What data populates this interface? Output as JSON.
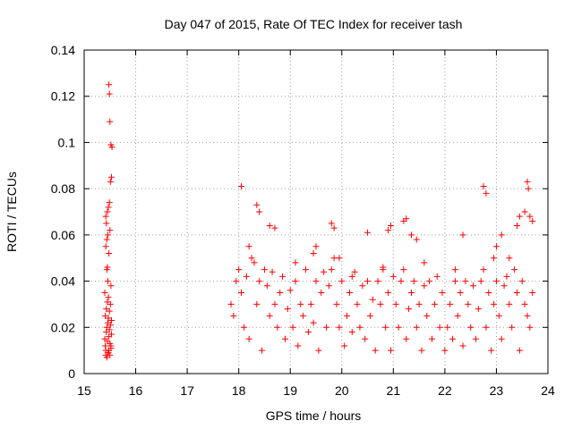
{
  "chart_data": {
    "type": "scatter",
    "title": "Day 047 of 2015, Rate Of TEC Index for receiver tash",
    "xlabel": "GPS time / hours",
    "ylabel": "ROTI / TECUs",
    "xlim": [
      15,
      24
    ],
    "ylim": [
      0,
      0.14
    ],
    "xticks": [
      15,
      16,
      17,
      18,
      19,
      20,
      21,
      22,
      23,
      24
    ],
    "yticks": [
      0,
      0.02,
      0.04,
      0.06,
      0.08,
      0.1,
      0.12,
      0.14
    ],
    "xtick_labels": [
      "15",
      "16",
      "17",
      "18",
      "19",
      "20",
      "21",
      "22",
      "23",
      "24"
    ],
    "ytick_labels": [
      "0",
      "0.02",
      "0.04",
      "0.06",
      "0.08",
      "0.1",
      "0.12",
      "0.14"
    ],
    "grid": true,
    "marker": "plus",
    "color": "#ff0000",
    "series": [
      {
        "name": "ROTI",
        "x": [
          15.4,
          15.41,
          15.42,
          15.43,
          15.44,
          15.45,
          15.46,
          15.47,
          15.48,
          15.49,
          15.5,
          15.51,
          15.52,
          15.53,
          15.41,
          15.43,
          15.45,
          15.47,
          15.49,
          15.51,
          15.53,
          15.42,
          15.44,
          15.46,
          15.48,
          15.5,
          15.52,
          15.4,
          15.44,
          15.48,
          15.52,
          15.42,
          15.46,
          15.5,
          15.45,
          15.47,
          15.49,
          15.51,
          15.53,
          15.52,
          15.54,
          15.5,
          15.49,
          15.48,
          15.47,
          15.46,
          15.45,
          15.44,
          15.43,
          15.42,
          17.85,
          17.9,
          17.95,
          18.0,
          18.05,
          18.1,
          18.15,
          18.2,
          18.25,
          18.3,
          18.35,
          18.4,
          18.45,
          18.5,
          18.55,
          18.6,
          18.65,
          18.7,
          18.75,
          18.8,
          18.85,
          18.9,
          18.95,
          19.0,
          19.05,
          19.1,
          19.15,
          19.2,
          19.25,
          19.3,
          19.35,
          19.4,
          19.45,
          19.5,
          19.55,
          19.6,
          19.65,
          19.7,
          19.75,
          19.8,
          19.85,
          19.9,
          19.95,
          20.0,
          20.05,
          20.1,
          20.15,
          20.2,
          20.25,
          20.3,
          20.35,
          20.4,
          20.45,
          20.5,
          20.55,
          20.6,
          20.65,
          20.7,
          20.75,
          20.8,
          20.85,
          20.9,
          20.95,
          21.0,
          21.05,
          21.1,
          21.15,
          21.2,
          21.25,
          21.3,
          21.35,
          21.4,
          21.45,
          21.5,
          21.55,
          21.6,
          21.65,
          21.7,
          21.75,
          21.8,
          21.85,
          21.9,
          21.95,
          22.0,
          22.05,
          22.1,
          22.15,
          22.2,
          22.25,
          22.3,
          22.35,
          22.4,
          22.45,
          22.5,
          22.55,
          22.6,
          22.65,
          22.7,
          22.75,
          22.8,
          22.85,
          22.9,
          22.95,
          23.0,
          23.05,
          23.1,
          23.15,
          23.2,
          23.25,
          23.3,
          23.35,
          23.4,
          23.45,
          23.5,
          23.55,
          23.6,
          23.65,
          23.7,
          18.05,
          18.35,
          18.4,
          18.6,
          18.7,
          19.8,
          19.85,
          20.5,
          20.9,
          20.95,
          21.2,
          21.25,
          21.35,
          21.45,
          22.35,
          22.75,
          22.8,
          23.0,
          23.1,
          23.4,
          23.45,
          23.55,
          23.6,
          23.62,
          23.65,
          23.7,
          18.2,
          19.45,
          19.5,
          19.95,
          21.6,
          22.2,
          22.95,
          23.25,
          19.1,
          20.2,
          20.8
        ],
        "y": [
          0.015,
          0.012,
          0.01,
          0.018,
          0.02,
          0.014,
          0.022,
          0.009,
          0.016,
          0.019,
          0.013,
          0.021,
          0.011,
          0.017,
          0.025,
          0.028,
          0.031,
          0.024,
          0.027,
          0.03,
          0.023,
          0.008,
          0.007,
          0.009,
          0.01,
          0.008,
          0.012,
          0.035,
          0.045,
          0.052,
          0.038,
          0.055,
          0.06,
          0.062,
          0.07,
          0.072,
          0.074,
          0.083,
          0.085,
          0.099,
          0.098,
          0.109,
          0.121,
          0.125,
          0.033,
          0.04,
          0.046,
          0.058,
          0.065,
          0.068,
          0.03,
          0.025,
          0.04,
          0.045,
          0.035,
          0.02,
          0.042,
          0.015,
          0.05,
          0.048,
          0.03,
          0.04,
          0.01,
          0.045,
          0.038,
          0.025,
          0.044,
          0.03,
          0.02,
          0.035,
          0.042,
          0.015,
          0.028,
          0.036,
          0.02,
          0.04,
          0.012,
          0.03,
          0.025,
          0.045,
          0.018,
          0.03,
          0.022,
          0.04,
          0.01,
          0.035,
          0.044,
          0.02,
          0.038,
          0.045,
          0.05,
          0.03,
          0.02,
          0.04,
          0.012,
          0.025,
          0.035,
          0.018,
          0.044,
          0.03,
          0.02,
          0.038,
          0.015,
          0.04,
          0.025,
          0.032,
          0.01,
          0.04,
          0.03,
          0.045,
          0.02,
          0.035,
          0.01,
          0.042,
          0.03,
          0.02,
          0.04,
          0.045,
          0.015,
          0.028,
          0.035,
          0.04,
          0.02,
          0.03,
          0.01,
          0.038,
          0.025,
          0.04,
          0.015,
          0.03,
          0.042,
          0.02,
          0.035,
          0.01,
          0.02,
          0.03,
          0.015,
          0.04,
          0.025,
          0.035,
          0.012,
          0.04,
          0.03,
          0.02,
          0.038,
          0.015,
          0.028,
          0.04,
          0.045,
          0.02,
          0.035,
          0.01,
          0.03,
          0.04,
          0.025,
          0.015,
          0.038,
          0.042,
          0.03,
          0.02,
          0.045,
          0.035,
          0.01,
          0.04,
          0.03,
          0.025,
          0.02,
          0.035,
          0.081,
          0.073,
          0.07,
          0.064,
          0.063,
          0.065,
          0.063,
          0.061,
          0.062,
          0.064,
          0.066,
          0.067,
          0.06,
          0.058,
          0.06,
          0.081,
          0.078,
          0.055,
          0.06,
          0.064,
          0.068,
          0.07,
          0.083,
          0.08,
          0.068,
          0.066,
          0.055,
          0.052,
          0.055,
          0.05,
          0.048,
          0.045,
          0.05,
          0.05,
          0.048,
          0.042,
          0.046
        ]
      }
    ]
  }
}
